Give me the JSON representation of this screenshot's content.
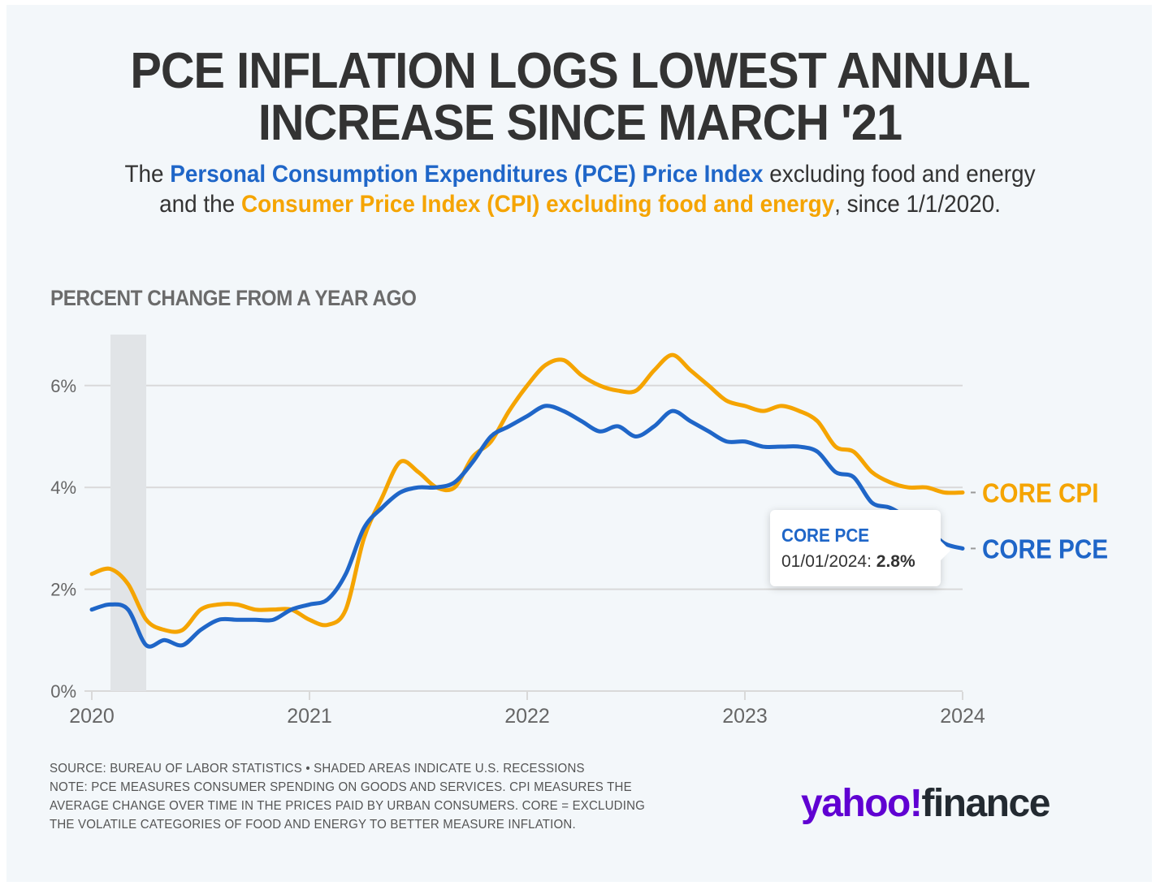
{
  "header": {
    "title_line1": "PCE INFLATION LOGS LOWEST ANNUAL",
    "title_line2": "INCREASE SINCE MARCH '21",
    "subtitle": {
      "part1": "The ",
      "pce_link": "Personal Consumption Expenditures (PCE) Price Index",
      "part2": " excluding food and energy and the ",
      "cpi_link": "Consumer Price Index (CPI) excluding food and energy",
      "part3": ", since 1/1/2020."
    }
  },
  "colors": {
    "pce": "#1f66c8",
    "cpi": "#f5a400",
    "recession": "#e1e4e7",
    "grid": "#d9d9d9",
    "yahoo_purple": "#6001d2"
  },
  "chart_data": {
    "type": "line",
    "title": "PERCENT CHANGE FROM A YEAR AGO",
    "xlabel": "",
    "ylabel": "PERCENT CHANGE FROM A YEAR AGO",
    "x_start": "2020-01",
    "x_ticks": [
      "2020",
      "2021",
      "2022",
      "2023",
      "2024"
    ],
    "y_ticks": [
      "0%",
      "2%",
      "4%",
      "6%"
    ],
    "ylim": [
      0,
      7
    ],
    "grid": true,
    "recession_shading": {
      "start": "2020-02",
      "end": "2020-04"
    },
    "x": [
      "2020-01",
      "2020-02",
      "2020-03",
      "2020-04",
      "2020-05",
      "2020-06",
      "2020-07",
      "2020-08",
      "2020-09",
      "2020-10",
      "2020-11",
      "2020-12",
      "2021-01",
      "2021-02",
      "2021-03",
      "2021-04",
      "2021-05",
      "2021-06",
      "2021-07",
      "2021-08",
      "2021-09",
      "2021-10",
      "2021-11",
      "2021-12",
      "2022-01",
      "2022-02",
      "2022-03",
      "2022-04",
      "2022-05",
      "2022-06",
      "2022-07",
      "2022-08",
      "2022-09",
      "2022-10",
      "2022-11",
      "2022-12",
      "2023-01",
      "2023-02",
      "2023-03",
      "2023-04",
      "2023-05",
      "2023-06",
      "2023-07",
      "2023-08",
      "2023-09",
      "2023-10",
      "2023-11",
      "2023-12",
      "2024-01"
    ],
    "series": [
      {
        "name": "CORE CPI",
        "color": "#f5a400",
        "values": [
          2.3,
          2.4,
          2.1,
          1.4,
          1.2,
          1.2,
          1.6,
          1.7,
          1.7,
          1.6,
          1.6,
          1.6,
          1.4,
          1.3,
          1.6,
          3.0,
          3.8,
          4.5,
          4.3,
          4.0,
          4.0,
          4.6,
          4.9,
          5.5,
          6.0,
          6.4,
          6.5,
          6.2,
          6.0,
          5.9,
          5.9,
          6.3,
          6.6,
          6.3,
          6.0,
          5.7,
          5.6,
          5.5,
          5.6,
          5.5,
          5.3,
          4.8,
          4.7,
          4.3,
          4.1,
          4.0,
          4.0,
          3.9,
          3.9
        ]
      },
      {
        "name": "CORE PCE",
        "color": "#1f66c8",
        "values": [
          1.6,
          1.7,
          1.6,
          0.9,
          1.0,
          0.9,
          1.2,
          1.4,
          1.4,
          1.4,
          1.4,
          1.6,
          1.7,
          1.8,
          2.3,
          3.2,
          3.6,
          3.9,
          4.0,
          4.0,
          4.1,
          4.5,
          5.0,
          5.2,
          5.4,
          5.6,
          5.5,
          5.3,
          5.1,
          5.2,
          5.0,
          5.2,
          5.5,
          5.3,
          5.1,
          4.9,
          4.9,
          4.8,
          4.8,
          4.8,
          4.7,
          4.3,
          4.2,
          3.7,
          3.6,
          3.4,
          3.2,
          2.9,
          2.8
        ]
      }
    ],
    "annotations": {
      "series_labels": [
        "CORE CPI",
        "CORE PCE"
      ],
      "tooltip": {
        "series": "CORE PCE",
        "date": "01/01/2024:",
        "value": "2.8%"
      }
    }
  },
  "footer": {
    "source": "SOURCE: BUREAU OF LABOR STATISTICS • SHADED AREAS INDICATE U.S. RECESSIONS",
    "note_line1": "NOTE: PCE MEASURES CONSUMER SPENDING ON GOODS AND SERVICES. CPI MEASURES THE",
    "note_line2": "AVERAGE CHANGE OVER TIME IN THE PRICES PAID BY URBAN CONSUMERS. CORE = EXCLUDING",
    "note_line3": "THE VOLATILE CATEGORIES OF FOOD AND ENERGY TO BETTER MEASURE INFLATION."
  },
  "logo": {
    "yahoo": "yahoo!",
    "finance": "finance"
  }
}
